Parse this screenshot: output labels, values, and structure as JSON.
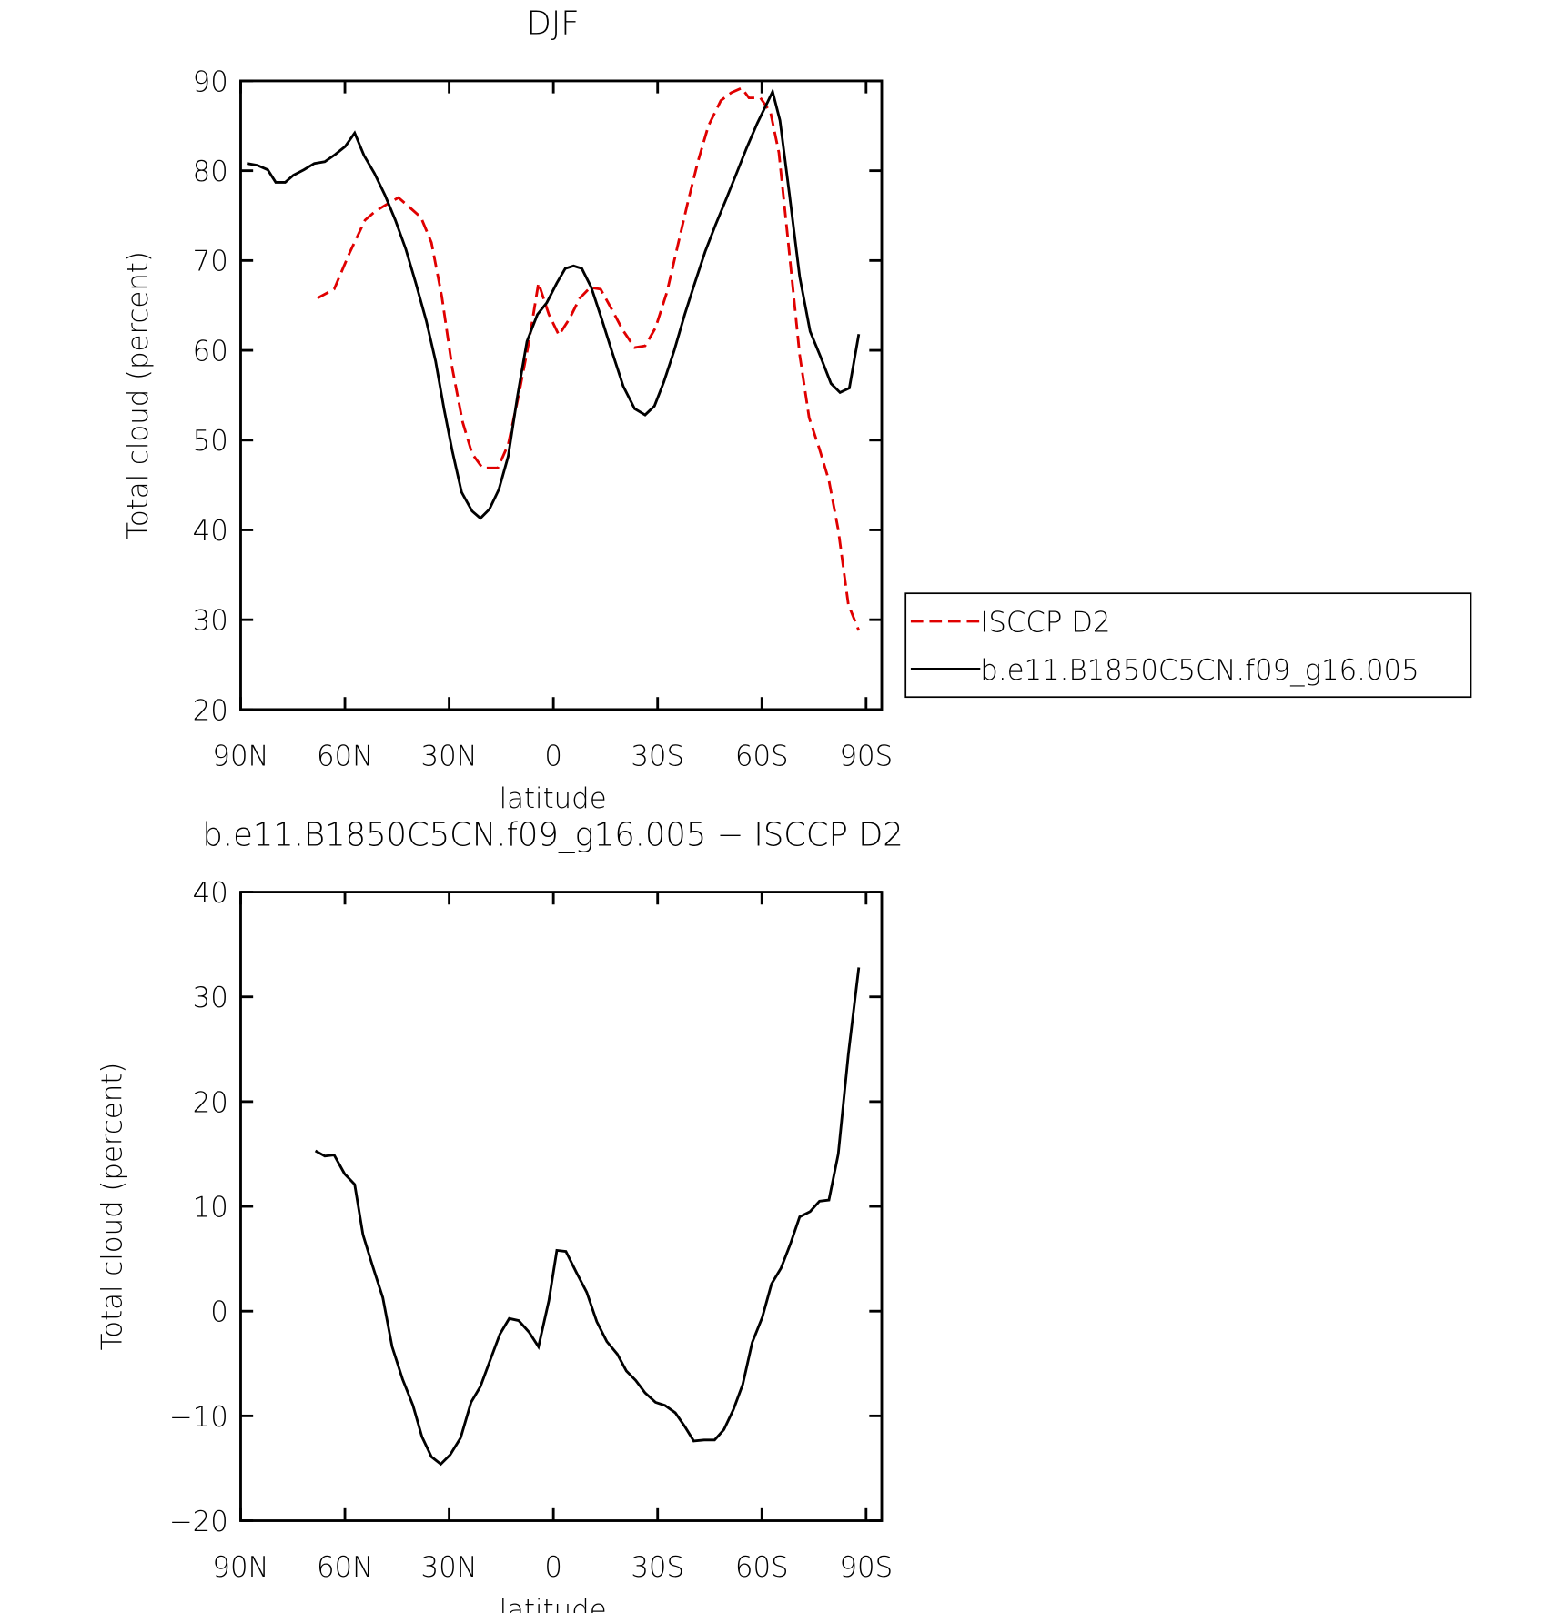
{
  "chart_data": [
    {
      "type": "line",
      "title": "DJF",
      "xlabel": "latitude",
      "ylabel": "Total cloud (percent)",
      "xlim": [
        90,
        -94.5
      ],
      "ylim": [
        20,
        90
      ],
      "xticks": [
        {
          "value": 90,
          "label": "90N"
        },
        {
          "value": 60,
          "label": "60N"
        },
        {
          "value": 30,
          "label": "30N"
        },
        0,
        {
          "value": -30,
          "label": "30S"
        },
        {
          "value": -60,
          "label": "60S"
        },
        {
          "value": -90,
          "label": "90S"
        }
      ],
      "yticks": [
        20,
        30,
        40,
        50,
        60,
        70,
        80,
        90
      ],
      "legend": "outside-right",
      "series": [
        {
          "name": "ISCCP D2",
          "color": "#e00000",
          "dash": "dashed",
          "x": [
            67.9,
            63.1,
            58.7,
            54.2,
            51.2,
            48.2,
            44.6,
            41.6,
            38.1,
            35.1,
            32.1,
            29.1,
            26.1,
            23.4,
            20.4,
            16.0,
            13.0,
            10.0,
            7.0,
            4.3,
            1.3,
            -1.6,
            -4.6,
            -7.6,
            -10.6,
            -13.6,
            -16.9,
            -19.9,
            -23.4,
            -26.4,
            -29.4,
            -32.7,
            -35.7,
            -38.7,
            -41.6,
            -44.6,
            -48.2,
            -51.2,
            -54.2,
            -56.3,
            -59.6,
            -62.5,
            -64.9,
            -67.6,
            -70.9,
            -73.6,
            -76.6,
            -79.3,
            -82.0,
            -84.9,
            -87.9
          ],
          "values": [
            65.8,
            66.8,
            70.8,
            74.5,
            75.5,
            76.2,
            77.0,
            76.0,
            74.8,
            72.0,
            66.0,
            58.0,
            52.0,
            48.5,
            46.9,
            46.9,
            49.5,
            55.0,
            61.0,
            67.5,
            64.0,
            61.7,
            63.5,
            65.8,
            67.0,
            66.8,
            64.5,
            62.3,
            60.3,
            60.5,
            62.5,
            66.5,
            71.5,
            76.5,
            81.0,
            85.0,
            87.8,
            88.7,
            89.2,
            88.1,
            88.1,
            86.5,
            82.0,
            72.0,
            59.5,
            52.5,
            49.0,
            45.5,
            40.0,
            31.7,
            28.8
          ]
        },
        {
          "name": "b.e11.B1850C5CN.f09_g16.005",
          "color": "#000000",
          "dash": "solid",
          "x": [
            88.2,
            85.2,
            82.2,
            79.9,
            77.2,
            74.8,
            71.8,
            68.8,
            65.8,
            62.8,
            59.9,
            57.2,
            54.5,
            51.5,
            48.5,
            45.5,
            42.5,
            39.6,
            36.6,
            33.9,
            31.5,
            29.1,
            26.4,
            23.4,
            21.0,
            18.4,
            15.7,
            13.0,
            10.3,
            7.6,
            4.6,
            1.9,
            -1.0,
            -3.4,
            -5.8,
            -8.2,
            -10.9,
            -13.9,
            -16.9,
            -20.1,
            -23.4,
            -26.4,
            -29.1,
            -31.8,
            -34.8,
            -37.8,
            -40.7,
            -43.7,
            -46.7,
            -49.7,
            -52.7,
            -55.7,
            -58.7,
            -61.6,
            -63.1,
            -65.2,
            -67.9,
            -70.9,
            -73.9,
            -76.9,
            -79.9,
            -82.5,
            -85.2,
            -87.9
          ],
          "values": [
            80.8,
            80.6,
            80.1,
            78.7,
            78.7,
            79.5,
            80.1,
            80.8,
            81.0,
            81.8,
            82.7,
            84.2,
            81.7,
            79.7,
            77.3,
            74.5,
            71.3,
            67.5,
            63.3,
            58.8,
            53.5,
            48.8,
            44.2,
            42.1,
            41.3,
            42.3,
            44.5,
            48.2,
            55.0,
            61.0,
            64.0,
            65.3,
            67.5,
            69.1,
            69.4,
            69.1,
            67.0,
            63.5,
            59.8,
            56.0,
            53.5,
            52.8,
            53.8,
            56.5,
            60.0,
            64.0,
            67.5,
            71.0,
            74.0,
            76.8,
            79.7,
            82.6,
            85.3,
            87.6,
            88.8,
            85.6,
            77.5,
            68.2,
            62.1,
            59.3,
            56.3,
            55.3,
            55.8,
            61.8
          ]
        }
      ]
    },
    {
      "type": "line",
      "title": "b.e11.B1850C5CN.f09_g16.005 − ISCCP D2",
      "xlabel": "latitude",
      "ylabel": "Total cloud (percent)",
      "xlim": [
        90,
        -94.5
      ],
      "ylim": [
        -20,
        40
      ],
      "xticks": [
        {
          "value": 90,
          "label": "90N"
        },
        {
          "value": 60,
          "label": "60N"
        },
        {
          "value": 30,
          "label": "30N"
        },
        0,
        {
          "value": -30,
          "label": "30S"
        },
        {
          "value": -60,
          "label": "60S"
        },
        {
          "value": -90,
          "label": "90S"
        }
      ],
      "yticks": [
        {
          "value": -20,
          "label": "−20"
        },
        {
          "value": -10,
          "label": "−10"
        },
        0,
        10,
        20,
        30,
        40
      ],
      "series": [
        {
          "color": "#000000",
          "dash": "solid",
          "x": [
            68.5,
            65.8,
            63.1,
            60.1,
            57.2,
            54.8,
            52.1,
            49.1,
            46.4,
            43.4,
            40.4,
            37.8,
            35.1,
            32.4,
            29.7,
            26.7,
            23.7,
            21.0,
            18.1,
            15.4,
            12.7,
            10.0,
            7.0,
            4.3,
            1.3,
            -1.0,
            -3.6,
            -6.6,
            -9.6,
            -12.5,
            -15.4,
            -18.4,
            -21.0,
            -23.7,
            -26.4,
            -29.4,
            -32.1,
            -35.1,
            -37.8,
            -40.4,
            -43.4,
            -46.4,
            -49.1,
            -51.8,
            -54.5,
            -57.2,
            -60.1,
            -62.8,
            -65.5,
            -68.2,
            -70.9,
            -73.9,
            -76.6,
            -79.3,
            -82.0,
            -84.9,
            -87.9
          ],
          "values": [
            15.3,
            14.8,
            14.9,
            13.1,
            12.1,
            7.3,
            4.4,
            1.3,
            -3.4,
            -6.5,
            -9.0,
            -12.0,
            -13.9,
            -14.6,
            -13.7,
            -12.1,
            -8.7,
            -7.2,
            -4.6,
            -2.2,
            -0.7,
            -0.9,
            -2.0,
            -3.4,
            1.0,
            5.8,
            5.7,
            3.7,
            1.8,
            -1.0,
            -2.9,
            -4.1,
            -5.7,
            -6.6,
            -7.8,
            -8.7,
            -9.0,
            -9.7,
            -11.0,
            -12.4,
            -12.3,
            -12.3,
            -11.3,
            -9.4,
            -7.0,
            -3.0,
            -0.6,
            2.6,
            4.1,
            6.4,
            9.0,
            9.5,
            10.5,
            10.6,
            15.0,
            24.5,
            32.8
          ]
        }
      ]
    }
  ]
}
